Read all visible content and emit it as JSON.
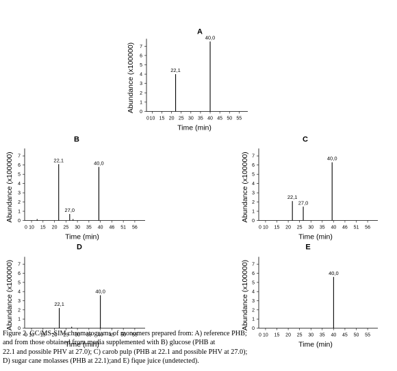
{
  "chart_data": [
    {
      "type": "bar",
      "panel": "A",
      "xlabel": "Time (min)",
      "ylabel": "Abundance (x100000)",
      "xlim": [
        0,
        55
      ],
      "ylim": [
        0,
        7.5
      ],
      "xticks": [
        "0",
        "10",
        "15",
        "20",
        "25",
        "30",
        "35",
        "40",
        "45",
        "50",
        "55"
      ],
      "yticks": [
        "0",
        "1",
        "2",
        "3",
        "4",
        "5",
        "6",
        "7"
      ],
      "peaks": [
        {
          "x": 22.1,
          "value": 4.0,
          "label": "22,1"
        },
        {
          "x": 40.0,
          "value": 7.5,
          "label": "40,0"
        }
      ]
    },
    {
      "type": "bar",
      "panel": "B",
      "xlabel": "Time (min)",
      "ylabel": "Abundance (x100000)",
      "xlim": [
        0,
        56
      ],
      "ylim": [
        0,
        7.5
      ],
      "xticks": [
        "0",
        "10",
        "15",
        "20",
        "25",
        "30",
        "35",
        "40",
        "46",
        "51",
        "56"
      ],
      "yticks": [
        "0",
        "1",
        "2",
        "3",
        "4",
        "5",
        "6",
        "7"
      ],
      "peaks": [
        {
          "x": 22.1,
          "value": 6.1,
          "label": "22,1"
        },
        {
          "x": 27.0,
          "value": 0.7,
          "label": "27,0"
        },
        {
          "x": 40.0,
          "value": 5.8,
          "label": "40,0"
        },
        {
          "x": 12.5,
          "value": 0.15,
          "label": ""
        },
        {
          "x": 28.5,
          "value": 0.15,
          "label": ""
        }
      ]
    },
    {
      "type": "bar",
      "panel": "C",
      "xlabel": "Time (min)",
      "ylabel": "Abundance (x100000)",
      "xlim": [
        0,
        56
      ],
      "ylim": [
        0,
        7.5
      ],
      "xticks": [
        "0",
        "10",
        "15",
        "20",
        "25",
        "30",
        "35",
        "40",
        "46",
        "51",
        "56"
      ],
      "yticks": [
        "0",
        "1",
        "2",
        "3",
        "4",
        "5",
        "6",
        "7"
      ],
      "peaks": [
        {
          "x": 22.1,
          "value": 2.1,
          "label": "22,1"
        },
        {
          "x": 27.0,
          "value": 1.5,
          "label": "27,0"
        },
        {
          "x": 40.0,
          "value": 6.3,
          "label": "40,0"
        }
      ]
    },
    {
      "type": "bar",
      "panel": "D",
      "xlabel": "Time (min)",
      "ylabel": "Abundance (x100000)",
      "xlim": [
        0,
        55
      ],
      "ylim": [
        0,
        7.5
      ],
      "xticks": [
        "0",
        "10",
        "15",
        "20",
        "25",
        "30",
        "35",
        "40",
        "45",
        "50",
        "55"
      ],
      "yticks": [
        "0",
        "1",
        "2",
        "3",
        "4",
        "5",
        "6",
        "7"
      ],
      "peaks": [
        {
          "x": 22.1,
          "value": 2.2,
          "label": "22,1"
        },
        {
          "x": 40.0,
          "value": 3.6,
          "label": "40,0"
        },
        {
          "x": 27.5,
          "value": 0.15,
          "label": ""
        }
      ]
    },
    {
      "type": "bar",
      "panel": "E",
      "xlabel": "Time (min)",
      "ylabel": "Abundance (x100000)",
      "xlim": [
        0,
        55
      ],
      "ylim": [
        0,
        7.5
      ],
      "xticks": [
        "0",
        "10",
        "15",
        "20",
        "25",
        "30",
        "35",
        "40",
        "45",
        "50",
        "55"
      ],
      "yticks": [
        "0",
        "1",
        "2",
        "3",
        "4",
        "5",
        "6",
        "7"
      ],
      "peaks": [
        {
          "x": 40.0,
          "value": 5.6,
          "label": "40,0"
        }
      ]
    }
  ],
  "caption": [
    "Figure 2. GC/MS-SIM chromatograms of monomers prepared from: A) reference PHB;",
    "and from those obtained from media supplemented with B) glucose (PHB at",
    "22.1 and possible PHV at 27.0); C) carob pulp (PHB at 22.1 and possible PHV at 27.0);",
    "D) sugar cane molasses (PHB at 22.1);and E) fique juice (undetected)."
  ]
}
